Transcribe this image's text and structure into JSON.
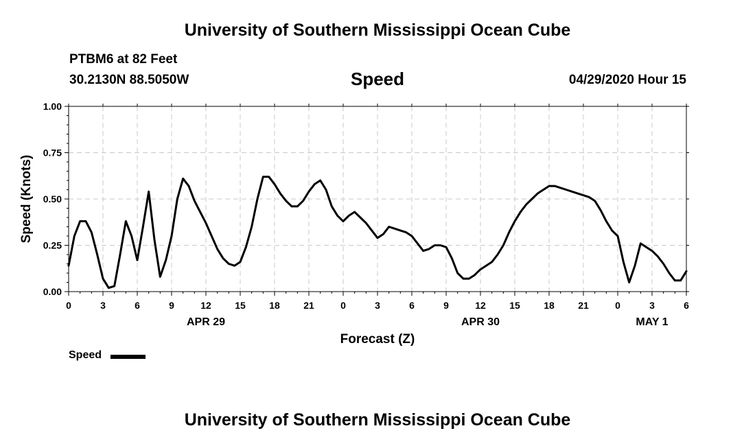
{
  "header": {
    "top_title": "University of Southern Mississippi Ocean Cube",
    "station": "PTBM6 at 82 Feet",
    "coords": "30.2130N 88.5050W",
    "variable": "Speed",
    "stamp": "04/29/2020 Hour 15"
  },
  "footer": {
    "bottom_title": "University of Southern Mississippi Ocean Cube"
  },
  "legend": {
    "label": "Speed",
    "color": "#000000"
  },
  "chart_data": {
    "type": "line",
    "title": "Speed",
    "xlabel": "Forecast (Z)",
    "ylabel": "Speed (Knots)",
    "x_unit": "hours from 00Z Apr 29",
    "xlim": [
      0,
      54
    ],
    "ylim": [
      0,
      1
    ],
    "yticks": [
      "0.00",
      "0.25",
      "0.50",
      "0.75",
      "1.00"
    ],
    "xtick_labels": [
      "0",
      "3",
      "6",
      "9",
      "12",
      "15",
      "18",
      "21",
      "0",
      "3",
      "6",
      "9",
      "12",
      "15",
      "18",
      "21",
      "0",
      "3",
      "6"
    ],
    "date_labels": [
      {
        "label": "APR 29",
        "hour": 12
      },
      {
        "label": "APR 30",
        "hour": 36
      },
      {
        "label": "MAY 1",
        "hour": 51
      }
    ],
    "grid": true,
    "legend_position": "bottom-left",
    "series": [
      {
        "name": "Speed",
        "color": "#000000",
        "x": [
          0,
          0.5,
          1,
          1.5,
          2,
          2.5,
          3,
          3.5,
          4,
          4.5,
          5,
          5.5,
          6,
          6.5,
          7,
          7.5,
          8,
          8.5,
          9,
          9.5,
          10,
          10.5,
          11,
          11.5,
          12,
          12.5,
          13,
          13.5,
          14,
          14.5,
          15,
          15.5,
          16,
          16.5,
          17,
          17.5,
          18,
          18.5,
          19,
          19.5,
          20,
          20.5,
          21,
          21.5,
          22,
          22.5,
          23,
          23.5,
          24,
          24.5,
          25,
          25.5,
          26,
          26.5,
          27,
          27.5,
          28,
          28.5,
          29,
          29.5,
          30,
          30.5,
          31,
          31.5,
          32,
          32.5,
          33,
          33.5,
          34,
          34.5,
          35,
          35.5,
          36,
          36.5,
          37,
          37.5,
          38,
          38.5,
          39,
          39.5,
          40,
          40.5,
          41,
          41.5,
          42,
          42.5,
          43,
          43.5,
          44,
          44.5,
          45,
          45.5,
          46,
          46.5,
          47,
          47.5,
          48,
          48.5,
          49,
          49.5,
          50,
          50.5,
          51,
          51.5,
          52,
          52.5,
          53,
          53.5,
          54
        ],
        "values": [
          0.14,
          0.3,
          0.38,
          0.38,
          0.32,
          0.2,
          0.07,
          0.02,
          0.03,
          0.2,
          0.38,
          0.3,
          0.17,
          0.35,
          0.54,
          0.28,
          0.08,
          0.17,
          0.3,
          0.5,
          0.61,
          0.57,
          0.49,
          0.43,
          0.37,
          0.3,
          0.23,
          0.18,
          0.15,
          0.14,
          0.16,
          0.24,
          0.35,
          0.5,
          0.62,
          0.62,
          0.58,
          0.53,
          0.49,
          0.46,
          0.46,
          0.49,
          0.54,
          0.58,
          0.6,
          0.55,
          0.46,
          0.41,
          0.38,
          0.41,
          0.43,
          0.4,
          0.37,
          0.33,
          0.29,
          0.31,
          0.35,
          0.34,
          0.33,
          0.32,
          0.3,
          0.26,
          0.22,
          0.23,
          0.25,
          0.25,
          0.24,
          0.18,
          0.1,
          0.07,
          0.07,
          0.09,
          0.12,
          0.14,
          0.16,
          0.2,
          0.25,
          0.32,
          0.38,
          0.43,
          0.47,
          0.5,
          0.53,
          0.55,
          0.57,
          0.57,
          0.56,
          0.55,
          0.54,
          0.53,
          0.52,
          0.51,
          0.49,
          0.44,
          0.38,
          0.33,
          0.3,
          0.16,
          0.05,
          0.14,
          0.26,
          0.24,
          0.22,
          0.19,
          0.15,
          0.1,
          0.06,
          0.06,
          0.11
        ]
      }
    ]
  }
}
